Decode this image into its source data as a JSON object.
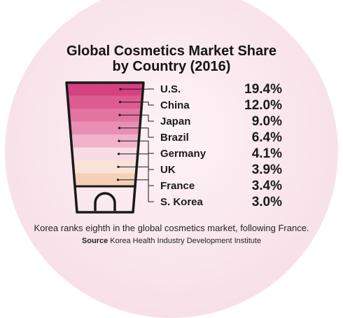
{
  "title_line1": "Global Cosmetics Market Share",
  "title_line2": "by Country (2016)",
  "caption": "Korea ranks eighth in the global cosmetics market, following France.",
  "source_label": "Source",
  "source_text": "Korea Health Industry Development Institute",
  "colors": {
    "background": "#f8e1e9",
    "bands": [
      "#d6417f",
      "#dc5c90",
      "#e274a2",
      "#e88fb3",
      "#f0b3ca",
      "#f8dbe5",
      "#f9e2d7",
      "#f6cfb8"
    ],
    "outline": "#1a1a1a"
  },
  "chart_data": {
    "type": "table",
    "title": "Global Cosmetics Market Share by Country (2016)",
    "categories": [
      "U.S.",
      "China",
      "Japan",
      "Brazil",
      "Germany",
      "UK",
      "France",
      "S. Korea"
    ],
    "values": [
      19.4,
      12.0,
      9.0,
      6.4,
      4.1,
      3.9,
      3.4,
      3.0
    ],
    "labels": [
      "19.4%",
      "12.0%",
      "9.0%",
      "6.4%",
      "4.1%",
      "3.9%",
      "3.4%",
      "3.0%"
    ],
    "unit": "%"
  }
}
